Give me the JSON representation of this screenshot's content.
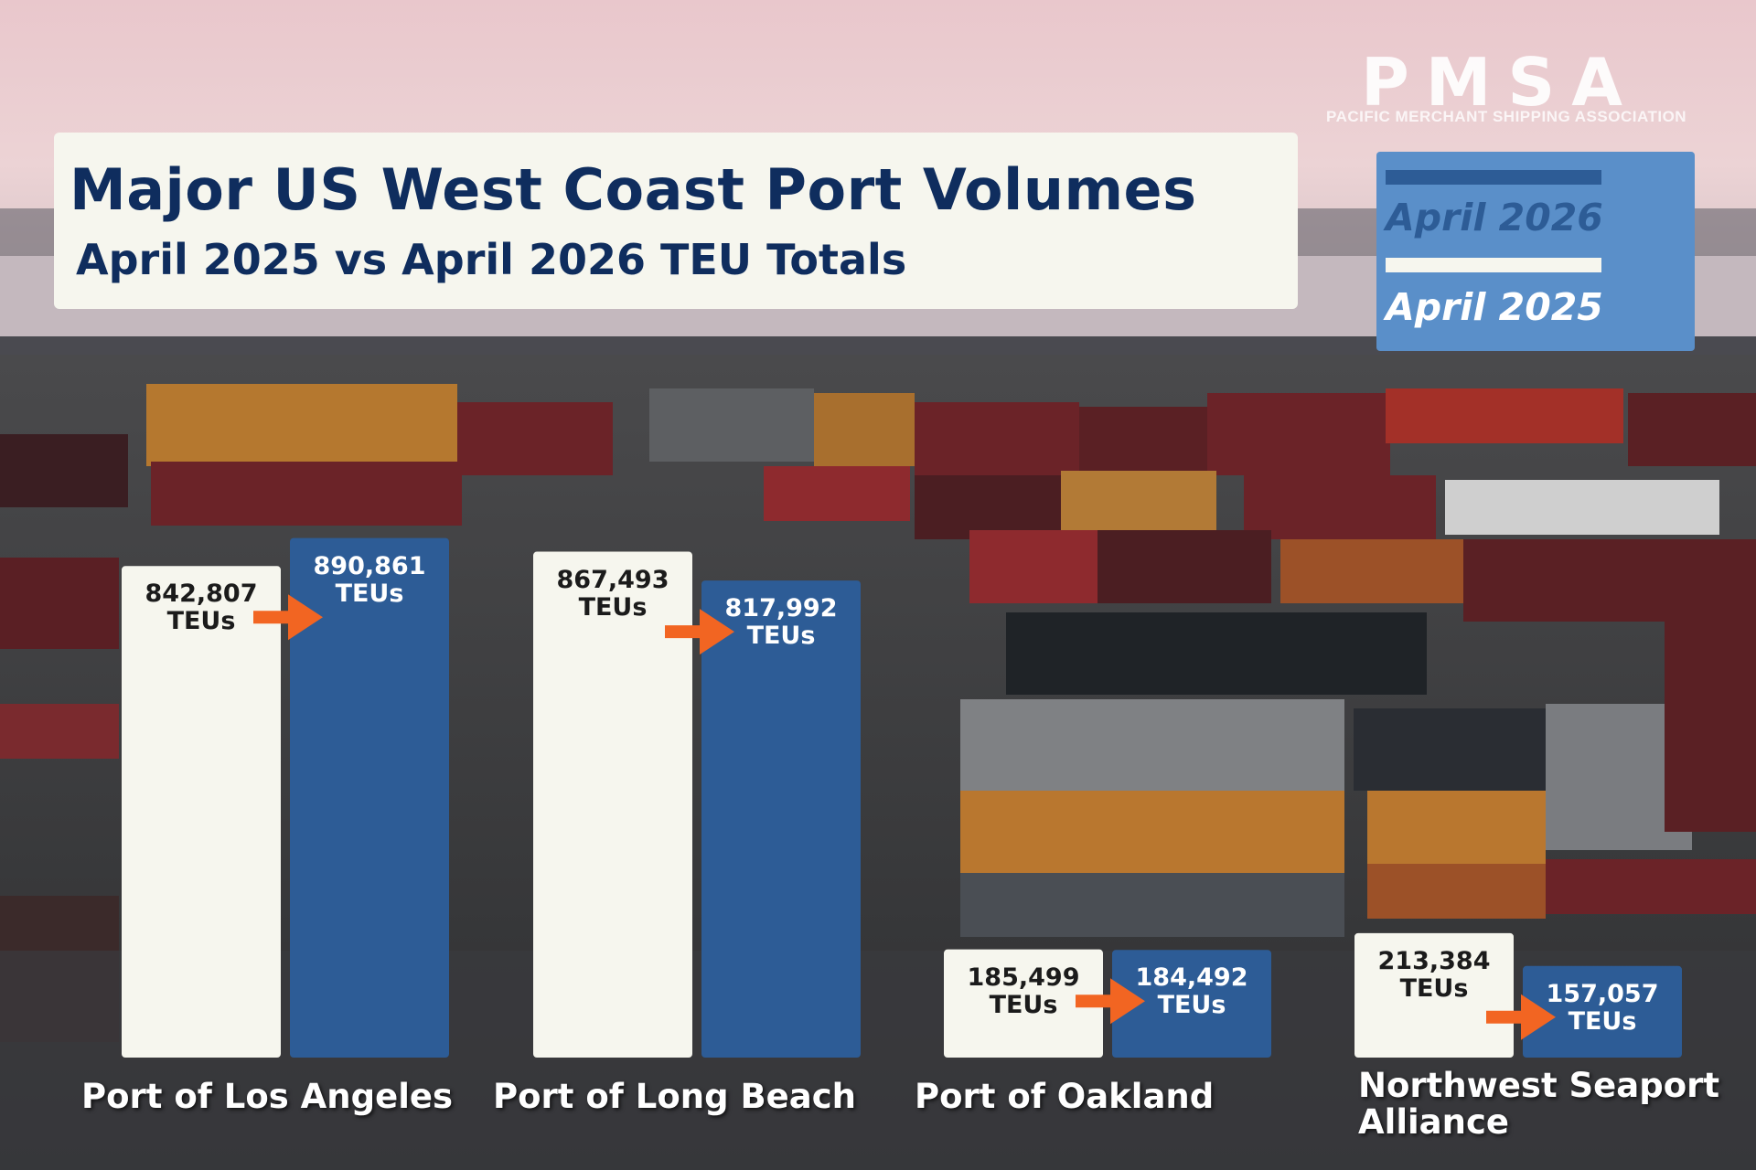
{
  "header": {
    "title": "Major US West Coast Port Volumes",
    "subtitle": "April 2025 vs April 2026 TEU Totals"
  },
  "logo": {
    "name": "PMSA",
    "tagline": "PACIFIC MERCHANT SHIPPING ASSOCIATION"
  },
  "legend": {
    "items": [
      {
        "label": "April 2026",
        "color": "#2d5c96"
      },
      {
        "label": "April 2025",
        "color": "#f6f6ee"
      }
    ],
    "placement": "top-right"
  },
  "chart_data": {
    "type": "bar",
    "title": "Major US West Coast Port Volumes",
    "subtitle": "April 2025 vs April 2026 TEU Totals",
    "categories": [
      [
        "Port of Los Angeles"
      ],
      [
        "Port of Long Beach"
      ],
      [
        "Port of Oakland"
      ],
      [
        "Northwest Seaport",
        "Alliance"
      ]
    ],
    "unit": "TEUs",
    "series": [
      {
        "name": "April 2025",
        "color": "#f6f6ee",
        "values": [
          842807,
          867493,
          185499,
          213384
        ],
        "labels": [
          "842,807",
          "867,493",
          "185,499",
          "213,384"
        ]
      },
      {
        "name": "April 2026",
        "color": "#2d5c96",
        "values": [
          890861,
          817992,
          184492,
          157057
        ],
        "labels": [
          "890,861",
          "817,992",
          "184,492",
          "157,057"
        ]
      }
    ],
    "annotations": "orange arrow from April 2025 to April 2026 bar for each port",
    "arrow_color": "#f26522",
    "legend_position": "top-right",
    "grid": false
  }
}
